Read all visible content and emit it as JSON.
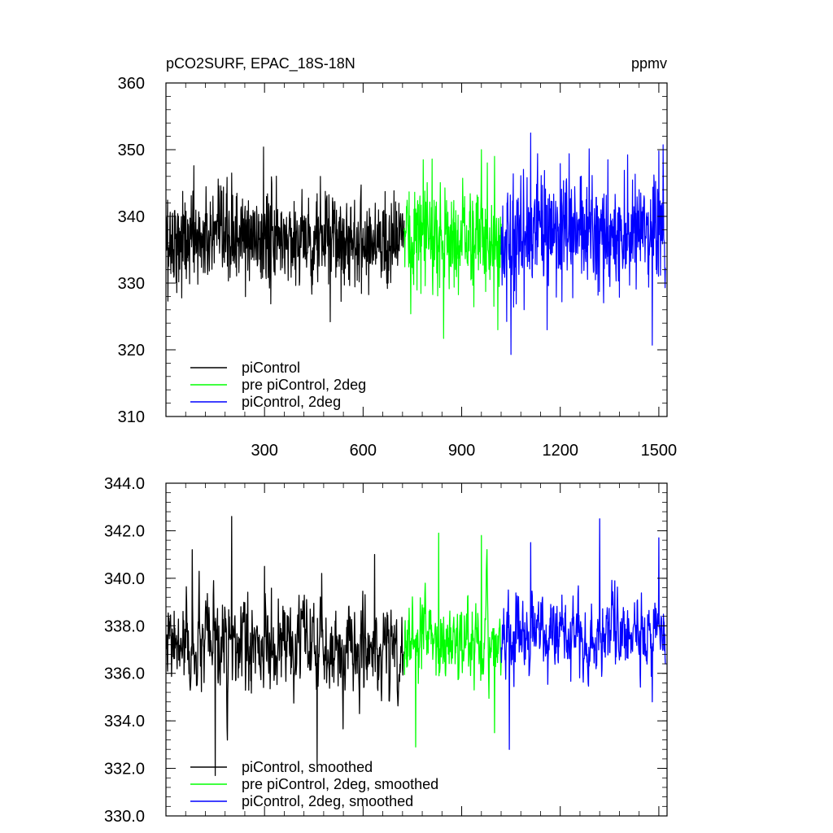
{
  "chart_data": [
    {
      "type": "line",
      "title": "pCO2SURF, EPAC_18S-18N",
      "units": "ppmv",
      "xlabel": "",
      "ylabel": "",
      "xlim": [
        0,
        1525
      ],
      "ylim": [
        310,
        360
      ],
      "x_ticks": [
        300,
        600,
        900,
        1200,
        1500
      ],
      "x_tick_labels": [
        "300",
        "600",
        "900",
        "1200",
        "1500"
      ],
      "y_ticks": [
        310,
        320,
        330,
        340,
        350,
        360
      ],
      "y_tick_labels": [
        "310",
        "320",
        "330",
        "340",
        "350",
        "360"
      ],
      "legend_position": "bottom-left",
      "series": [
        {
          "name": "piControl",
          "color": "#000000",
          "x_range": [
            1,
            725
          ],
          "mean": 336.5,
          "min": 324.2,
          "max": 350.4,
          "notable_points": [
            [
              6,
              327.3
            ],
            [
              85,
              347.6
            ],
            [
              200,
              346.5
            ],
            [
              297,
              350.4
            ],
            [
              470,
              346.0
            ],
            [
              500,
              324.2
            ]
          ]
        },
        {
          "name": "pre piControl, 2deg",
          "color": "#00ff00",
          "x_range": [
            725,
            1020
          ],
          "mean": 336.8,
          "min": 321.7,
          "max": 350.0,
          "notable_points": [
            [
              745,
              325.4
            ],
            [
              810,
              348.6
            ],
            [
              845,
              321.7
            ],
            [
              960,
              350.0
            ],
            [
              1000,
              349.0
            ],
            [
              1010,
              323.0
            ]
          ]
        },
        {
          "name": "piControl, 2deg",
          "color": "#0000ff",
          "x_range": [
            1020,
            1520
          ],
          "mean": 337.5,
          "min": 319.3,
          "max": 352.5,
          "notable_points": [
            [
              1050,
              319.3
            ],
            [
              1110,
              352.5
            ],
            [
              1160,
              323.0
            ],
            [
              1345,
              348.5
            ],
            [
              1480,
              320.7
            ],
            [
              1500,
              349.8
            ]
          ]
        }
      ]
    },
    {
      "type": "line",
      "title": "",
      "xlabel": "",
      "ylabel": "",
      "xlim": [
        0,
        1525
      ],
      "ylim": [
        330.0,
        344.0
      ],
      "x_ticks": [
        300,
        600,
        900,
        1200,
        1500
      ],
      "y_ticks": [
        330.0,
        332.0,
        334.0,
        336.0,
        338.0,
        340.0,
        342.0,
        344.0
      ],
      "y_tick_labels": [
        "330.0",
        "332.0",
        "334.0",
        "336.0",
        "338.0",
        "340.0",
        "342.0",
        "344.0"
      ],
      "legend_position": "bottom-left",
      "series": [
        {
          "name": "piControl, smoothed",
          "color": "#000000",
          "x_range": [
            1,
            725
          ],
          "mean": 337.0,
          "min": 331.7,
          "max": 342.6,
          "notable_points": [
            [
              80,
              341.2
            ],
            [
              150,
              331.7
            ],
            [
              200,
              342.6
            ],
            [
              300,
              340.5
            ],
            [
              460,
              332.2
            ],
            [
              635,
              341.0
            ]
          ]
        },
        {
          "name": "pre piControl, 2deg, smoothed",
          "color": "#00ff00",
          "x_range": [
            725,
            1020
          ],
          "mean": 337.3,
          "min": 332.9,
          "max": 341.9,
          "notable_points": [
            [
              760,
              332.9
            ],
            [
              830,
              341.9
            ],
            [
              960,
              341.8
            ],
            [
              1000,
              333.5
            ]
          ]
        },
        {
          "name": "piControl, 2deg, smoothed",
          "color": "#0000ff",
          "x_range": [
            1020,
            1520
          ],
          "mean": 337.6,
          "min": 332.8,
          "max": 342.5,
          "notable_points": [
            [
              1045,
              332.8
            ],
            [
              1110,
              341.5
            ],
            [
              1320,
              342.5
            ],
            [
              1480,
              334.8
            ],
            [
              1500,
              341.7
            ]
          ]
        }
      ]
    }
  ]
}
